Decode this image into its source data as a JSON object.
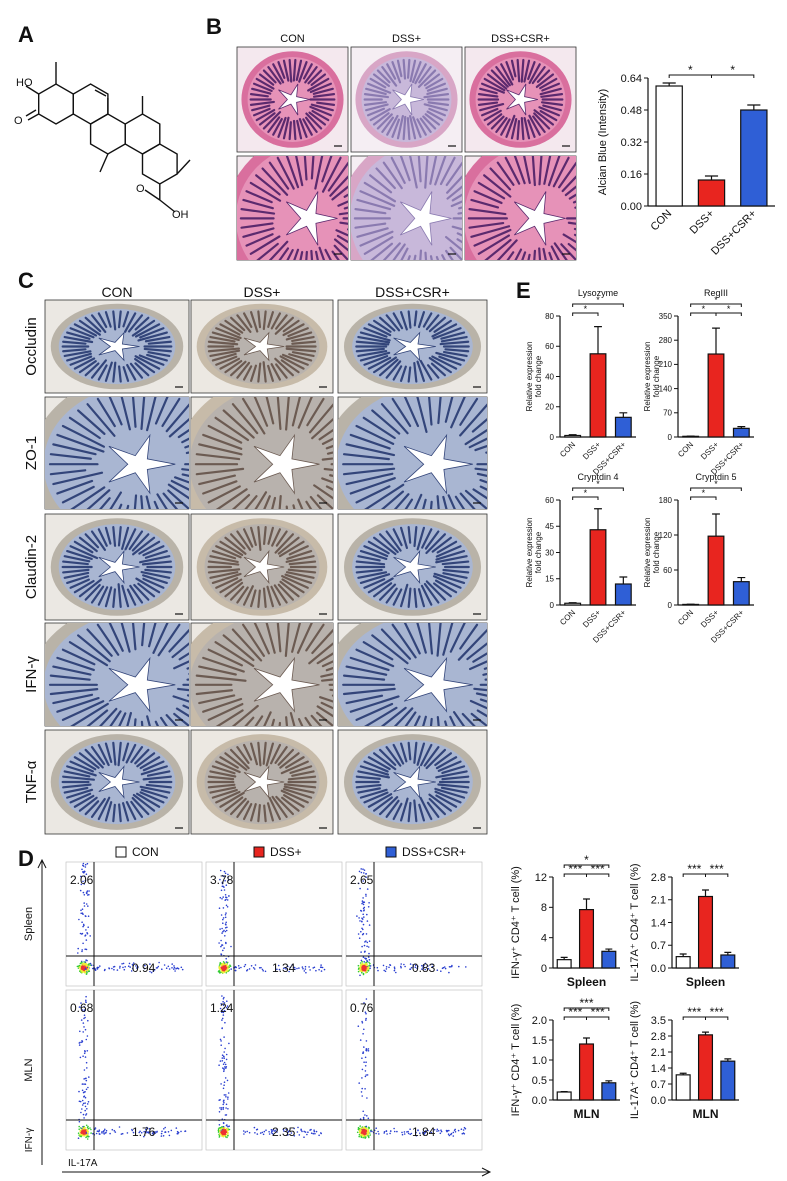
{
  "panels": {
    "A": {
      "letter": "A",
      "atoms": [
        "HO",
        "O",
        "O",
        "OH"
      ]
    },
    "B": {
      "letter": "B",
      "columns": [
        "CON",
        "DSS+",
        "DSS+CSR+"
      ]
    },
    "C": {
      "letter": "C",
      "columns": [
        "CON",
        "DSS+",
        "DSS+CSR+"
      ],
      "rows": [
        "Occludin",
        "ZO-1",
        "Claudin-2",
        "IFN-γ",
        "TNF-α"
      ]
    },
    "D": {
      "letter": "D",
      "legend": [
        {
          "name": "CON",
          "color": "#ffffff"
        },
        {
          "name": "DSS+",
          "color": "#e8251f"
        },
        {
          "name": "DSS+CSR+",
          "color": "#2f5fd6"
        }
      ],
      "rows": [
        "Spleen",
        "MLN"
      ],
      "x_axis": "IL-17A",
      "y_axis": "IFN-γ",
      "quadrants": [
        [
          [
            2.06,
            0.94
          ],
          [
            3.78,
            1.34
          ],
          [
            2.65,
            0.83
          ]
        ],
        [
          [
            0.68,
            1.76
          ],
          [
            1.24,
            2.35
          ],
          [
            0.76,
            1.84
          ]
        ]
      ]
    },
    "E": {
      "letter": "E"
    }
  },
  "chart_data": [
    {
      "type": "bar",
      "ylabel": "Alcian Blue (Intensity)",
      "categories": [
        "CON",
        "DSS+",
        "DSS+CSR+"
      ],
      "values": [
        0.6,
        0.13,
        0.48
      ],
      "errors": [
        0.015,
        0.02,
        0.025
      ],
      "colors": [
        "#ffffff",
        "#e8251f",
        "#2f5fd6"
      ],
      "ylim": [
        0,
        0.64
      ],
      "yticks": [
        {
          "value": 0,
          "label": "0.00"
        },
        0.16,
        0.32,
        0.48,
        0.64
      ],
      "significance": [
        {
          "label": "*",
          "pair": [
            0,
            1
          ]
        },
        {
          "label": "*",
          "pair": [
            1,
            2
          ]
        }
      ]
    },
    {
      "type": "bar",
      "title": "Lysozyme",
      "ylabel": [
        "Relative expression",
        "fold change"
      ],
      "categories": [
        "CON",
        "DSS+",
        "DSS+CSR+"
      ],
      "values": [
        1,
        55,
        13
      ],
      "errors": [
        0.5,
        18,
        3
      ],
      "colors": [
        "#ffffff",
        "#e8251f",
        "#2f5fd6"
      ],
      "ylim": [
        0,
        80
      ],
      "yticks": [
        0,
        20,
        40,
        60,
        80
      ],
      "significance": [
        {
          "label": "*",
          "pair": [
            0,
            2
          ]
        },
        {
          "label": "*",
          "pair": [
            0,
            1
          ]
        }
      ]
    },
    {
      "type": "bar",
      "title": "RegIII",
      "ylabel": [
        "Relative expression",
        "fold change"
      ],
      "categories": [
        "CON",
        "DSS+",
        "DSS+CSR+"
      ],
      "values": [
        2,
        240,
        25
      ],
      "errors": [
        0.5,
        75,
        5
      ],
      "colors": [
        "#ffffff",
        "#e8251f",
        "#2f5fd6"
      ],
      "ylim": [
        0,
        350
      ],
      "yticks": [
        0,
        70,
        140,
        210,
        280,
        350
      ],
      "significance": [
        {
          "label": "*",
          "pair": [
            0,
            2
          ]
        },
        {
          "label": "*",
          "pair": [
            0,
            1
          ]
        },
        {
          "label": "*",
          "pair": [
            1,
            2
          ]
        }
      ]
    },
    {
      "type": "bar",
      "title": "Cryptdin 4",
      "ylabel": [
        "Relative expression",
        "fold change"
      ],
      "categories": [
        "CON",
        "DSS+",
        "DSS+CSR+"
      ],
      "values": [
        1,
        43,
        12
      ],
      "errors": [
        0.3,
        12,
        4
      ],
      "colors": [
        "#ffffff",
        "#e8251f",
        "#2f5fd6"
      ],
      "ylim": [
        0,
        60
      ],
      "yticks": [
        0,
        15,
        30,
        45,
        60
      ],
      "significance": [
        {
          "label": "*",
          "pair": [
            0,
            2
          ]
        },
        {
          "label": "*",
          "pair": [
            0,
            1
          ]
        }
      ]
    },
    {
      "type": "bar",
      "title": "Cryptdin 5",
      "ylabel": [
        "Relative expression",
        "fold change"
      ],
      "categories": [
        "CON",
        "DSS+",
        "DSS+CSR+"
      ],
      "values": [
        1,
        118,
        40
      ],
      "errors": [
        0.3,
        38,
        7
      ],
      "colors": [
        "#ffffff",
        "#e8251f",
        "#2f5fd6"
      ],
      "ylim": [
        0,
        180
      ],
      "yticks": [
        0,
        60,
        120,
        180
      ],
      "significance": [
        {
          "label": "*",
          "pair": [
            0,
            2
          ]
        },
        {
          "label": "*",
          "pair": [
            0,
            1
          ]
        }
      ]
    },
    {
      "type": "bar",
      "ylabel": "IFN-γ⁺ CD4⁺ T cell (%)",
      "xlabel": "Spleen",
      "categories": [
        null,
        null,
        null
      ],
      "values": [
        1.1,
        7.7,
        2.2
      ],
      "errors": [
        0.3,
        1.4,
        0.3
      ],
      "colors": [
        "#ffffff",
        "#e8251f",
        "#2f5fd6"
      ],
      "ylim": [
        0,
        12
      ],
      "yticks": [
        0,
        4,
        8,
        12
      ],
      "significance": [
        {
          "label": "*",
          "pair": [
            0,
            2
          ]
        },
        {
          "label": "***",
          "pair": [
            0,
            1
          ]
        },
        {
          "label": "***",
          "pair": [
            1,
            2
          ]
        }
      ]
    },
    {
      "type": "bar",
      "ylabel": "IL-17A⁺ CD4⁺ T cell (%)",
      "xlabel": "Spleen",
      "categories": [
        null,
        null,
        null
      ],
      "values": [
        0.35,
        2.2,
        0.4
      ],
      "errors": [
        0.08,
        0.2,
        0.08
      ],
      "colors": [
        "#ffffff",
        "#e8251f",
        "#2f5fd6"
      ],
      "ylim": [
        0,
        2.8
      ],
      "yticks": [
        {
          "value": 0,
          "label": "0.0"
        },
        0.7,
        1.4,
        2.1,
        2.8
      ],
      "significance": [
        {
          "label": "***",
          "pair": [
            0,
            1
          ]
        },
        {
          "label": "***",
          "pair": [
            1,
            2
          ]
        }
      ]
    },
    {
      "type": "bar",
      "ylabel": "IFN-γ⁺ CD4⁺ T cell (%)",
      "xlabel": "MLN",
      "categories": [
        null,
        null,
        null
      ],
      "values": [
        0.2,
        1.4,
        0.43
      ],
      "errors": [
        0.01,
        0.15,
        0.05
      ],
      "colors": [
        "#ffffff",
        "#e8251f",
        "#2f5fd6"
      ],
      "ylim": [
        0,
        2
      ],
      "yticks": [
        {
          "value": 0,
          "label": "0.0"
        },
        0.5,
        {
          "value": 1,
          "label": "1.0"
        },
        1.5,
        {
          "value": 2,
          "label": "2.0"
        }
      ],
      "significance": [
        {
          "label": "***",
          "pair": [
            0,
            2
          ]
        },
        {
          "label": "***",
          "pair": [
            0,
            1
          ]
        },
        {
          "label": "***",
          "pair": [
            1,
            2
          ]
        }
      ]
    },
    {
      "type": "bar",
      "ylabel": "IL-17A⁺ CD4⁺ T cell (%)",
      "xlabel": "MLN",
      "categories": [
        null,
        null,
        null
      ],
      "values": [
        1.1,
        2.85,
        1.7
      ],
      "errors": [
        0.07,
        0.12,
        0.1
      ],
      "colors": [
        "#ffffff",
        "#e8251f",
        "#2f5fd6"
      ],
      "ylim": [
        0,
        3.5
      ],
      "yticks": [
        {
          "value": 0,
          "label": "0.0"
        },
        0.7,
        1.4,
        2.1,
        2.8,
        3.5
      ],
      "significance": [
        {
          "label": "***",
          "pair": [
            0,
            1
          ]
        },
        {
          "label": "***",
          "pair": [
            1,
            2
          ]
        }
      ]
    }
  ]
}
